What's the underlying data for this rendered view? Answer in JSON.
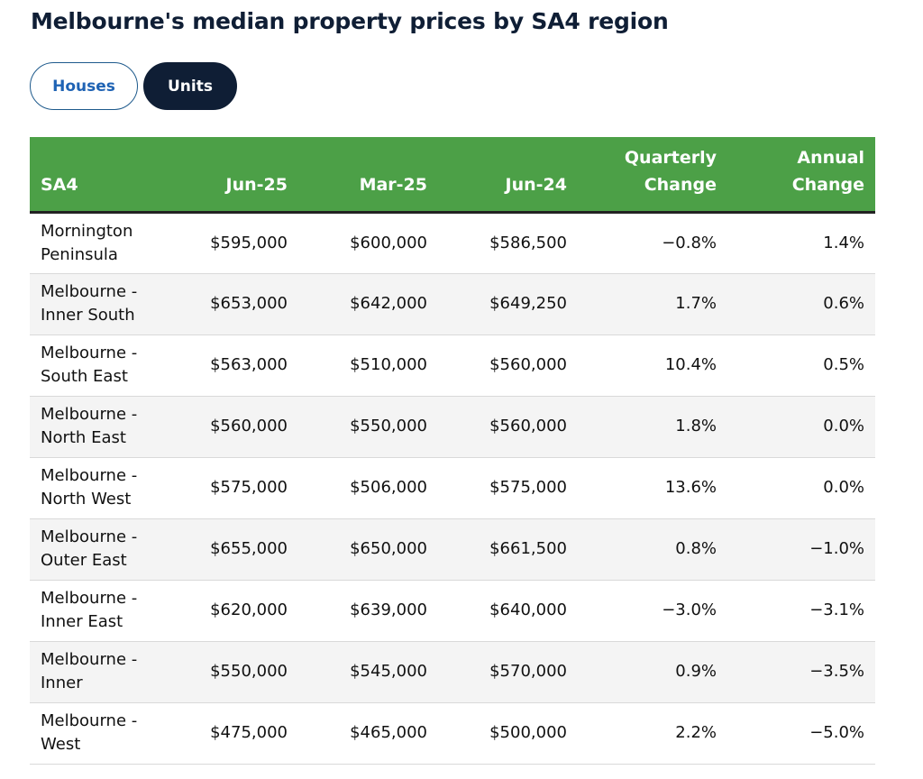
{
  "title": "Melbourne's median property prices by SA4 region",
  "toggle": {
    "houses_label": "Houses",
    "units_label": "Units",
    "selected": "Units"
  },
  "colors": {
    "header_bg": "#4ca047",
    "active_button": "#0f1e35",
    "inactive_button_text": "#1f63b4"
  },
  "chart_data": {
    "type": "table",
    "columns": [
      [
        "SA4"
      ],
      [
        "Jun-25"
      ],
      [
        "Mar-25"
      ],
      [
        "Jun-24"
      ],
      [
        "Quarterly",
        "Change"
      ],
      [
        "Annual",
        "Change"
      ]
    ],
    "rows": [
      [
        [
          "Mornington",
          "Peninsula"
        ],
        "$595,000",
        "$600,000",
        "$586,500",
        "−0.8%",
        "1.4%"
      ],
      [
        [
          "Melbourne -",
          "Inner South"
        ],
        "$653,000",
        "$642,000",
        "$649,250",
        "1.7%",
        "0.6%"
      ],
      [
        [
          "Melbourne -",
          "South East"
        ],
        "$563,000",
        "$510,000",
        "$560,000",
        "10.4%",
        "0.5%"
      ],
      [
        [
          "Melbourne -",
          "North East"
        ],
        "$560,000",
        "$550,000",
        "$560,000",
        "1.8%",
        "0.0%"
      ],
      [
        [
          "Melbourne -",
          "North West"
        ],
        "$575,000",
        "$506,000",
        "$575,000",
        "13.6%",
        "0.0%"
      ],
      [
        [
          "Melbourne -",
          "Outer East"
        ],
        "$655,000",
        "$650,000",
        "$661,500",
        "0.8%",
        "−1.0%"
      ],
      [
        [
          "Melbourne -",
          "Inner East"
        ],
        "$620,000",
        "$639,000",
        "$640,000",
        "−3.0%",
        "−3.1%"
      ],
      [
        [
          "Melbourne -",
          "Inner"
        ],
        "$550,000",
        "$545,000",
        "$570,000",
        "0.9%",
        "−3.5%"
      ],
      [
        [
          "Melbourne -",
          "West"
        ],
        "$475,000",
        "$465,000",
        "$500,000",
        "2.2%",
        "−5.0%"
      ]
    ]
  }
}
